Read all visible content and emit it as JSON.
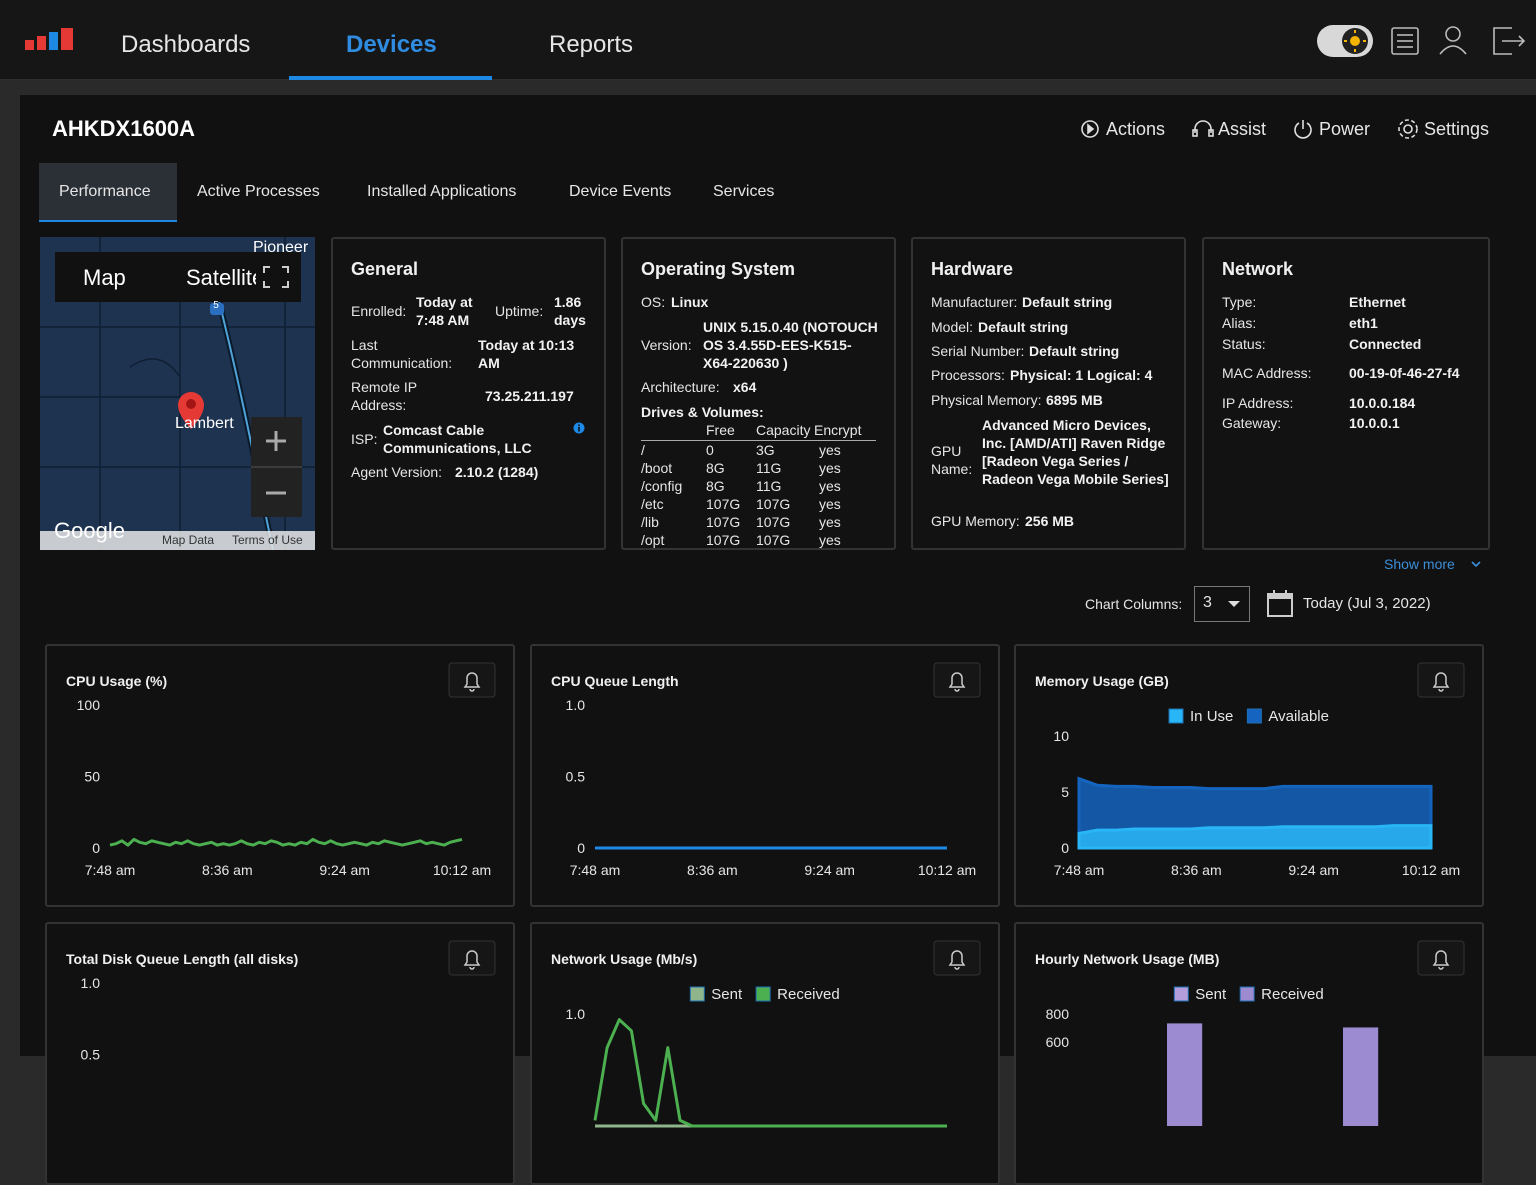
{
  "nav": [
    "Dashboards",
    "Devices",
    "Reports"
  ],
  "device_name": "AHKDX1600A",
  "actions": [
    "Actions",
    "Assist",
    "Power",
    "Settings"
  ],
  "tabs": [
    "Performance",
    "Active Processes",
    "Installed Applications",
    "Device Events",
    "Services"
  ],
  "map": {
    "buttons": [
      "Map",
      "Satellite"
    ],
    "places": [
      "Pioneer",
      "Lambert"
    ],
    "route": "5",
    "brand": "Google",
    "footer": [
      "Map Data",
      "Terms of Use"
    ]
  },
  "general": {
    "title": "General",
    "fields": [
      [
        "Enrolled:",
        "Today at 7:48 AM"
      ],
      [
        "Uptime:",
        "1.86 days"
      ],
      [
        "Last Communication:",
        "Today at 10:13 AM"
      ],
      [
        "Remote IP Address:",
        "73.25.211.197"
      ],
      [
        "ISP:",
        "Comcast Cable Communications, LLC"
      ],
      [
        "Agent Version:",
        "2.10.2 (1284)"
      ]
    ]
  },
  "os": {
    "title": "Operating System",
    "fields": [
      [
        "OS:",
        "Linux"
      ],
      [
        "Version:",
        "UNIX 5.15.0.40 (NOTOUCH OS 3.4.55D-EES-K515-X64-220630 )"
      ],
      [
        "Architecture:",
        "x64"
      ]
    ],
    "drives_title": "Drives & Volumes:",
    "drives_columns": [
      "Free",
      "Capacity",
      "Encrypt"
    ],
    "drives": [
      [
        "/",
        "0",
        "3G",
        "yes"
      ],
      [
        "/boot",
        "8G",
        "11G",
        "yes"
      ],
      [
        "/config",
        "8G",
        "11G",
        "yes"
      ],
      [
        "/etc",
        "107G",
        "107G",
        "yes"
      ],
      [
        "/lib",
        "107G",
        "107G",
        "yes"
      ],
      [
        "/opt",
        "107G",
        "107G",
        "yes"
      ]
    ]
  },
  "hardware": {
    "title": "Hardware",
    "fields": [
      [
        "Manufacturer:",
        "Default string"
      ],
      [
        "Model:",
        "Default string"
      ],
      [
        "Serial Number:",
        "Default string"
      ],
      [
        "Processors:",
        "Physical: 1  Logical: 4"
      ],
      [
        "Physical Memory:",
        "6895 MB"
      ],
      [
        "GPU Name:",
        "Advanced Micro Devices, Inc. [AMD/ATI] Raven Ridge [Radeon Vega Series / Radeon Vega Mobile Series]"
      ],
      [
        "GPU Memory:",
        "256 MB"
      ]
    ]
  },
  "network": {
    "title": "Network",
    "fields": [
      [
        "Type:",
        "Ethernet"
      ],
      [
        "Alias:",
        "eth1"
      ],
      [
        "Status:",
        "Connected"
      ],
      [
        "MAC Address:",
        "00-19-0f-46-27-f4"
      ],
      [
        "IP Address:",
        "10.0.0.184"
      ],
      [
        "Gateway:",
        "10.0.0.1"
      ]
    ]
  },
  "show_more": "Show more",
  "chart_columns": {
    "label": "Chart Columns:",
    "value": "3"
  },
  "date": "Today (Jul 3, 2022)",
  "charts": [
    {
      "type": "line",
      "title": "CPU Usage (%)",
      "color": "#4caf50",
      "ylim": [
        0,
        100
      ],
      "yticks": [
        0,
        50,
        100
      ],
      "xticks": [
        "7:48 am",
        "8:36 am",
        "9:24 am",
        "10:12 am"
      ],
      "values": [
        2,
        3,
        5,
        2,
        6,
        4,
        3,
        5,
        4,
        3,
        2,
        4,
        3,
        5,
        3,
        2,
        3,
        4,
        2,
        3,
        2,
        3,
        5,
        3,
        2,
        4,
        3,
        5,
        4,
        2,
        3,
        2,
        4,
        3,
        6,
        4,
        3,
        5,
        3,
        2,
        3,
        4,
        3,
        2,
        4,
        3,
        5,
        4,
        3,
        2,
        3,
        4,
        5,
        3,
        4,
        3,
        2,
        4,
        5,
        6
      ]
    },
    {
      "type": "line",
      "title": "CPU Queue Length",
      "color": "#1e88e5",
      "ylim": [
        0,
        1
      ],
      "yticks": [
        0,
        0.5,
        {
          "value": 1,
          "label": "1.0"
        }
      ],
      "xticks": [
        "7:48 am",
        "8:36 am",
        "9:24 am",
        "10:12 am"
      ],
      "values": [
        0,
        0,
        0,
        0,
        0,
        0,
        0,
        0,
        0,
        0,
        0,
        0,
        0,
        0,
        0,
        0,
        0,
        0,
        0,
        0,
        0,
        0,
        0,
        0,
        0,
        0,
        0,
        0,
        0,
        0
      ]
    },
    {
      "type": "area",
      "title": "Memory Usage (GB)",
      "ylim": [
        0,
        10
      ],
      "yticks": [
        0,
        5,
        10
      ],
      "xticks": [
        "7:48 am",
        "8:36 am",
        "9:24 am",
        "10:12 am"
      ],
      "series": [
        {
          "name": "In Use",
          "color": "#29b6f6",
          "values": [
            1.3,
            1.6,
            1.6,
            1.7,
            1.7,
            1.7,
            1.7,
            1.8,
            1.8,
            1.8,
            1.8,
            1.9,
            1.9,
            1.9,
            1.9,
            1.9,
            1.9,
            2.0,
            2.0,
            2.0
          ]
        },
        {
          "name": "Available",
          "color": "#1565c0",
          "values": [
            6.2,
            5.6,
            5.5,
            5.5,
            5.4,
            5.4,
            5.4,
            5.3,
            5.3,
            5.3,
            5.3,
            5.5,
            5.5,
            5.5,
            5.5,
            5.5,
            5.5,
            5.5,
            5.5,
            5.5
          ]
        }
      ]
    },
    {
      "type": "line",
      "title": "Total Disk Queue Length (all disks)",
      "ylim": [
        0,
        1
      ],
      "yticks": [
        0.5,
        {
          "value": 1,
          "label": "1.0"
        }
      ]
    },
    {
      "type": "line",
      "title": "Network Usage (Mb/s)",
      "ylim": [
        0,
        1
      ],
      "yticks": [
        {
          "value": 1,
          "label": "1.0"
        }
      ],
      "series": [
        {
          "name": "Sent",
          "color": "#8fb58a",
          "values": [
            0,
            0,
            0,
            0,
            0,
            0,
            0,
            0,
            0,
            0,
            0,
            0,
            0,
            0,
            0,
            0,
            0,
            0,
            0,
            0,
            0,
            0,
            0,
            0,
            0,
            0,
            0,
            0,
            0,
            0
          ]
        },
        {
          "name": "Received",
          "color": "#4caf50",
          "values": [
            0.05,
            0.7,
            0.95,
            0.85,
            0.2,
            0.05,
            0.7,
            0.05,
            0,
            0,
            0,
            0,
            0,
            0,
            0,
            0,
            0,
            0,
            0,
            0,
            0,
            0,
            0,
            0,
            0,
            0,
            0,
            0,
            0,
            0
          ]
        }
      ]
    },
    {
      "type": "bar",
      "title": "Hourly Network Usage (MB)",
      "ylim": [
        0,
        800
      ],
      "yticks": [
        600,
        800
      ],
      "categories": [
        null,
        null
      ],
      "series": [
        {
          "name": "Sent",
          "color": "#b39ddb",
          "values": [
            null,
            null
          ]
        },
        {
          "name": "Received",
          "color": "#9c8bd0",
          "values": [
            733,
            704
          ]
        }
      ]
    }
  ]
}
